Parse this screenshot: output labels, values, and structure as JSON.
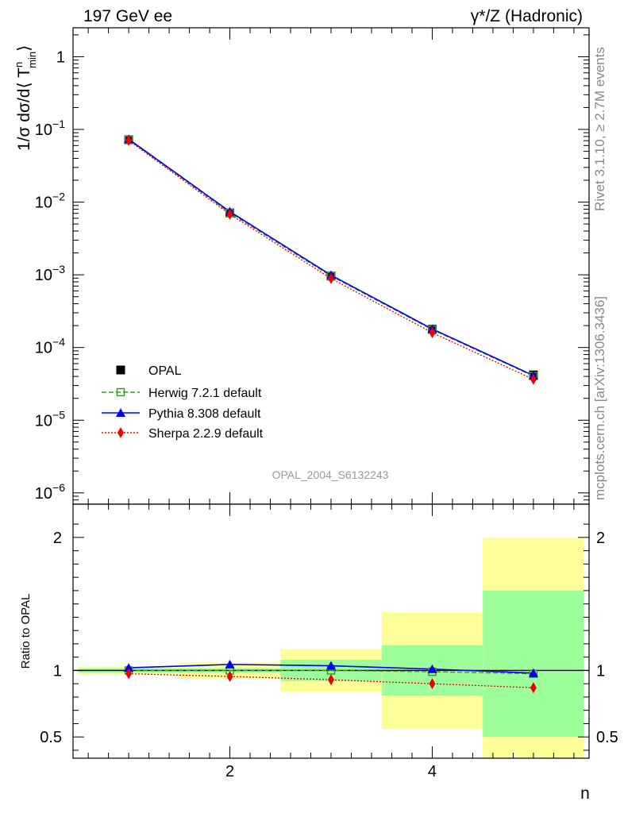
{
  "header": {
    "left": "197 GeV ee",
    "right": "γ*/Z (Hadronic)"
  },
  "side_labels": {
    "rivet": "Rivet 3.1.10, ≥ 2.7M events",
    "mcplots": "mcplots.cern.ch [arXiv:1306.3436]"
  },
  "watermark": "OPAL_2004_S6132243",
  "colors": {
    "data": "#000000",
    "herwig": "#3a9a1f",
    "pythia": "#0000ee",
    "sherpa": "#ee0000",
    "band_inner": "#9cff9c",
    "band_outer": "#ffff99"
  },
  "chart_data": [
    {
      "type": "line",
      "panel": "main",
      "ylabel": "1/σ dσ/d⟨ T",
      "ylabel_sup": "n",
      "ylabel_sub": "min",
      "ylabel_close": "⟩",
      "yscale": "log",
      "ylim": [
        7e-07,
        2.5
      ],
      "xlim": [
        0.45,
        5.55
      ],
      "y_ticks": [
        {
          "value": 1,
          "label": "1"
        },
        {
          "value": 0.1,
          "base": "10",
          "exp": "−1"
        },
        {
          "value": 0.01,
          "base": "10",
          "exp": "−2"
        },
        {
          "value": 0.001,
          "base": "10",
          "exp": "−3"
        },
        {
          "value": 0.0001,
          "base": "10",
          "exp": "−4"
        },
        {
          "value": 1e-05,
          "base": "10",
          "exp": "−5"
        },
        {
          "value": 1e-06,
          "base": "10",
          "exp": "−6"
        }
      ],
      "x": [
        1,
        2,
        3,
        4,
        5
      ],
      "series": [
        {
          "name": "OPAL",
          "key": "data",
          "values": [
            0.072,
            0.0071,
            0.00096,
            0.000178,
            4.2e-05
          ]
        },
        {
          "name": "Herwig 7.2.1 default",
          "key": "herwig",
          "values": [
            0.072,
            0.0071,
            0.00096,
            0.000176,
            4.05e-05
          ]
        },
        {
          "name": "Pythia 8.308 default",
          "key": "pythia",
          "values": [
            0.0735,
            0.0074,
            0.00099,
            0.00018,
            4.12e-05
          ]
        },
        {
          "name": "Sherpa 2.2.9 default",
          "key": "sherpa",
          "values": [
            0.0705,
            0.0068,
            0.00089,
            0.00016,
            3.65e-05
          ]
        }
      ]
    },
    {
      "type": "line",
      "panel": "ratio",
      "ylabel": "Ratio to OPAL",
      "xlabel": "n",
      "ylim": [
        0.34,
        2.25
      ],
      "xlim": [
        0.45,
        5.55
      ],
      "y_ticks": [
        {
          "value": 0.5,
          "label": "0.5"
        },
        {
          "value": 1,
          "label": "1"
        },
        {
          "value": 2,
          "label": "2"
        }
      ],
      "x_ticks": [
        {
          "value": 2,
          "label": "2"
        },
        {
          "value": 4,
          "label": "4"
        }
      ],
      "bands": [
        {
          "x0": 0.5,
          "x1": 1.5,
          "inner": [
            0.985,
            1.015
          ],
          "outer": [
            0.97,
            1.03
          ]
        },
        {
          "x0": 1.5,
          "x1": 2.5,
          "inner": [
            0.985,
            1.015
          ],
          "outer": [
            0.94,
            1.06
          ]
        },
        {
          "x0": 2.5,
          "x1": 3.5,
          "inner": [
            0.92,
            1.08
          ],
          "outer": [
            0.84,
            1.16
          ]
        },
        {
          "x0": 3.5,
          "x1": 4.5,
          "inner": [
            0.81,
            1.19
          ],
          "outer": [
            0.56,
            1.44
          ]
        },
        {
          "x0": 4.5,
          "x1": 5.5,
          "inner": [
            0.5,
            1.6
          ],
          "outer": [
            0.34,
            2.0
          ]
        }
      ],
      "x": [
        1,
        2,
        3,
        4,
        5
      ],
      "series": [
        {
          "name": "Herwig 7.2.1 default",
          "key": "herwig",
          "values": [
            1.0,
            1.0,
            1.0,
            0.99,
            0.975
          ]
        },
        {
          "name": "Pythia 8.308 default",
          "key": "pythia",
          "values": [
            1.02,
            1.045,
            1.035,
            1.01,
            0.98
          ]
        },
        {
          "name": "Sherpa 2.2.9 default",
          "key": "sherpa",
          "values": [
            0.975,
            0.955,
            0.93,
            0.9,
            0.87
          ]
        }
      ]
    }
  ]
}
